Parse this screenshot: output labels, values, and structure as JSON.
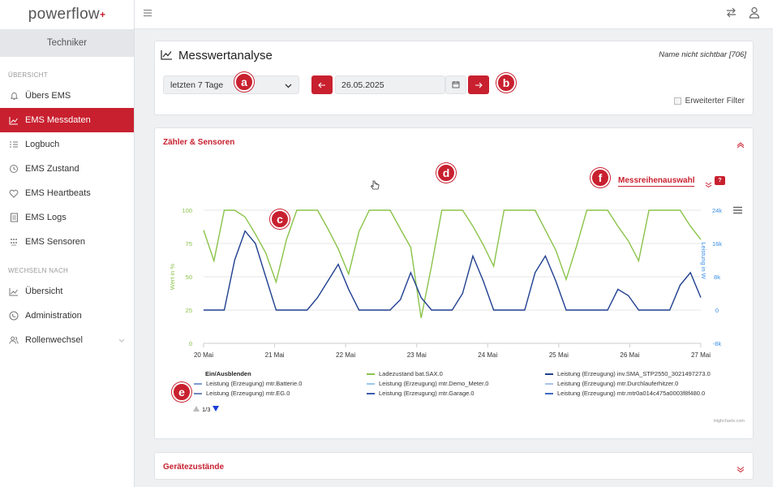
{
  "app": {
    "logo": "powerflow",
    "logo_mark": "+"
  },
  "sidebar": {
    "role": "Techniker",
    "section1": "ÜBERSICHT",
    "items1": [
      {
        "label": "Übers EMS",
        "icon": "bell-icon"
      },
      {
        "label": "EMS Messdaten",
        "icon": "chart-line-icon",
        "active": true
      },
      {
        "label": "Logbuch",
        "icon": "list-icon"
      },
      {
        "label": "EMS Zustand",
        "icon": "history-icon"
      },
      {
        "label": "EMS Heartbeats",
        "icon": "heart-icon"
      },
      {
        "label": "EMS Logs",
        "icon": "document-icon"
      },
      {
        "label": "EMS Sensoren",
        "icon": "sensor-grid-icon"
      }
    ],
    "section2": "WECHSELN NACH",
    "items2": [
      {
        "label": "Übersicht",
        "icon": "chart-line-icon"
      },
      {
        "label": "Administration",
        "icon": "phone-icon"
      },
      {
        "label": "Rollenwechsel",
        "icon": "users-icon"
      }
    ]
  },
  "header": {
    "title": "Messwertanalyse",
    "meta": "Name nicht sichtbar [706]",
    "range_select": "letzten 7 Tage",
    "date": "26.05.2025",
    "filter_label": "Erweiterter Filter"
  },
  "sensors": {
    "title": "Zähler & Sensoren",
    "series_picker": "Messreihenauswahl",
    "help": "?",
    "legend_title": "Ein/Ausblenden",
    "pager": "1/3",
    "credit": "Highcharts.com"
  },
  "devices": {
    "title": "Gerätezustände"
  },
  "markers": [
    "a",
    "b",
    "c",
    "d",
    "e",
    "f"
  ],
  "colors": {
    "accent": "#c8202f",
    "green": "#8bc34a",
    "blue_dark": "#1f3f8f",
    "blue_light": "#6ab0e8"
  },
  "chart_data": {
    "type": "line",
    "x_ticks": [
      "20 Mai",
      "21 Mai",
      "22 Mai",
      "23 Mai",
      "24 Mai",
      "25 Mai",
      "26 Mai",
      "27 Mai"
    ],
    "y_left_label": "Wert in %",
    "y_left_ticks": [
      "0",
      "25",
      "50",
      "75",
      "100"
    ],
    "y_left_range": [
      0,
      100
    ],
    "y_right_label": "Leistung in W",
    "y_right_ticks": [
      "-8k",
      "0",
      "8k",
      "16k",
      "24k"
    ],
    "y_right_range": [
      -8000,
      24000
    ],
    "grid": "horizontal",
    "legend_position": "bottom",
    "series": [
      {
        "name": "Ladezustand bat.SAX.0",
        "color": "#8bc34a",
        "axis": "left",
        "values": [
          85,
          62,
          100,
          100,
          95,
          82,
          68,
          46,
          78,
          100,
          100,
          100,
          86,
          71,
          52,
          84,
          100,
          100,
          100,
          86,
          72,
          19,
          58,
          100,
          100,
          100,
          88,
          74,
          58,
          100,
          100,
          100,
          100,
          85,
          70,
          48,
          73,
          100,
          100,
          100,
          88,
          77,
          62,
          100,
          100,
          100,
          100,
          88,
          78
        ]
      },
      {
        "name": "Leistung (Erzeugung) inv.SMA_STP2550_3021497273.0",
        "color": "#1f3f8f",
        "axis": "right",
        "values": [
          0,
          0,
          0,
          12000,
          19000,
          16000,
          8000,
          0,
          0,
          0,
          0,
          3000,
          7000,
          11000,
          5000,
          0,
          0,
          0,
          0,
          2500,
          9000,
          3000,
          0,
          0,
          0,
          4000,
          13000,
          7000,
          0,
          0,
          0,
          0,
          9000,
          13000,
          7000,
          0,
          0,
          0,
          0,
          0,
          5000,
          3500,
          0,
          0,
          0,
          0,
          6000,
          9000,
          3000
        ]
      },
      {
        "name": "Leistung (Erzeugung) mtr.Batterie.0",
        "color": "#7a9fd4",
        "axis": "right",
        "values": []
      },
      {
        "name": "Leistung (Erzeugung) mtr.Demo_Meter.0",
        "color": "#9cc9ea",
        "axis": "right",
        "values": []
      },
      {
        "name": "Leistung (Erzeugung) mtr.Durchlauferhitzer.0",
        "color": "#a8c3e6",
        "axis": "right",
        "values": []
      },
      {
        "name": "Leistung (Erzeugung) mtr.EG.0",
        "color": "#6e86bf",
        "axis": "right",
        "values": []
      },
      {
        "name": "Leistung (Erzeugung) mtr.Garage.0",
        "color": "#3b5bb0",
        "axis": "right",
        "values": []
      },
      {
        "name": "Leistung (Erzeugung) mtr.mtr0a014c475a0003f8f480.0",
        "color": "#3d6bc9",
        "axis": "right",
        "values": []
      }
    ]
  }
}
